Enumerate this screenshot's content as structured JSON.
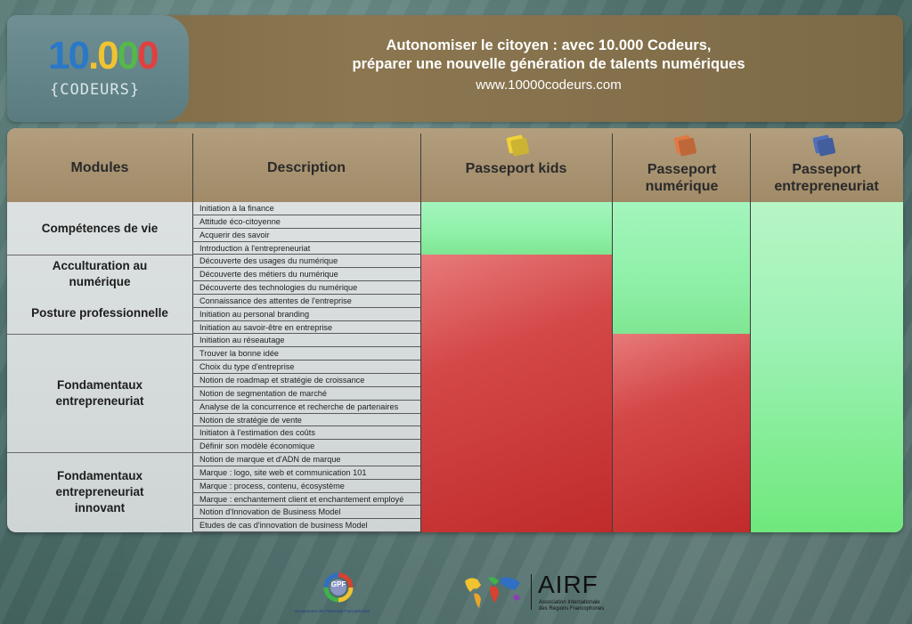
{
  "header": {
    "logo_number": "10.000",
    "logo_sub": "{CODEURS}",
    "title_line1": "Autonomiser le citoyen : avec 10.000 Codeurs,",
    "title_line2": "préparer une nouvelle génération de talents numériques",
    "url": "www.10000codeurs.com"
  },
  "table": {
    "col_modules": "Modules",
    "col_description": "Description",
    "col_kids": "Passeport  kids",
    "col_numerique": "Passeport numérique",
    "col_entrepreneuriat": "Passeport entrepreneuriat",
    "modules": [
      {
        "label": "Compétences de vie"
      },
      {
        "label": "Acculturation au numérique"
      },
      {
        "label": "Posture professionnelle"
      },
      {
        "label": "Fondamentaux entrepreneuriat"
      },
      {
        "label": "Fondamentaux entrepreneuriat innovant"
      }
    ],
    "descriptions": [
      "Initiation à la finance",
      "Attitude éco-citoyenne",
      "Acquerir des savoir",
      "Introduction à l'entrepreneuriat",
      "Découverte des usages du numérique",
      "Découverte des métiers du numérique",
      "Découverte des technologies du numérique",
      "Connaissance des attentes de l'entreprise",
      "Initiation au personal branding",
      "Initiation au savoir-être en entreprise",
      "Initiation au réseautage",
      "Trouver la bonne idée",
      "Choix du type d'entreprise",
      "Notion de roadmap et stratégie de croissance",
      "Notion de segmentation de marché",
      "Analyse de la concurrence et recherche de partenaires",
      "Notion de stratégie de vente",
      "Initiaton à l'estimation des coûts",
      "Définir son modèle économique",
      "Notion de marque et d'ADN de marque",
      "Marque : logo, site web et communication 101",
      "Marque : process, contenu, écosystème",
      "Marque : enchantement client et enchantement employé",
      "Notion d'Innovation de Business Model",
      "Etudes de cas d'innovation de business Model"
    ],
    "coverage": {
      "kids_included_rows": 4,
      "numerique_included_rows": 10,
      "entrepreneuriat_included_rows": 25,
      "included_color": "#8ff0a8",
      "excluded_color": "#c93636"
    }
  },
  "footer": {
    "gpf_label": "GPF",
    "gpf_caption": "Groupement des Patronats Francophones",
    "airf_label": "AIRF",
    "airf_caption_1": "Association Internationale",
    "airf_caption_2": "des Régions Francophones"
  }
}
